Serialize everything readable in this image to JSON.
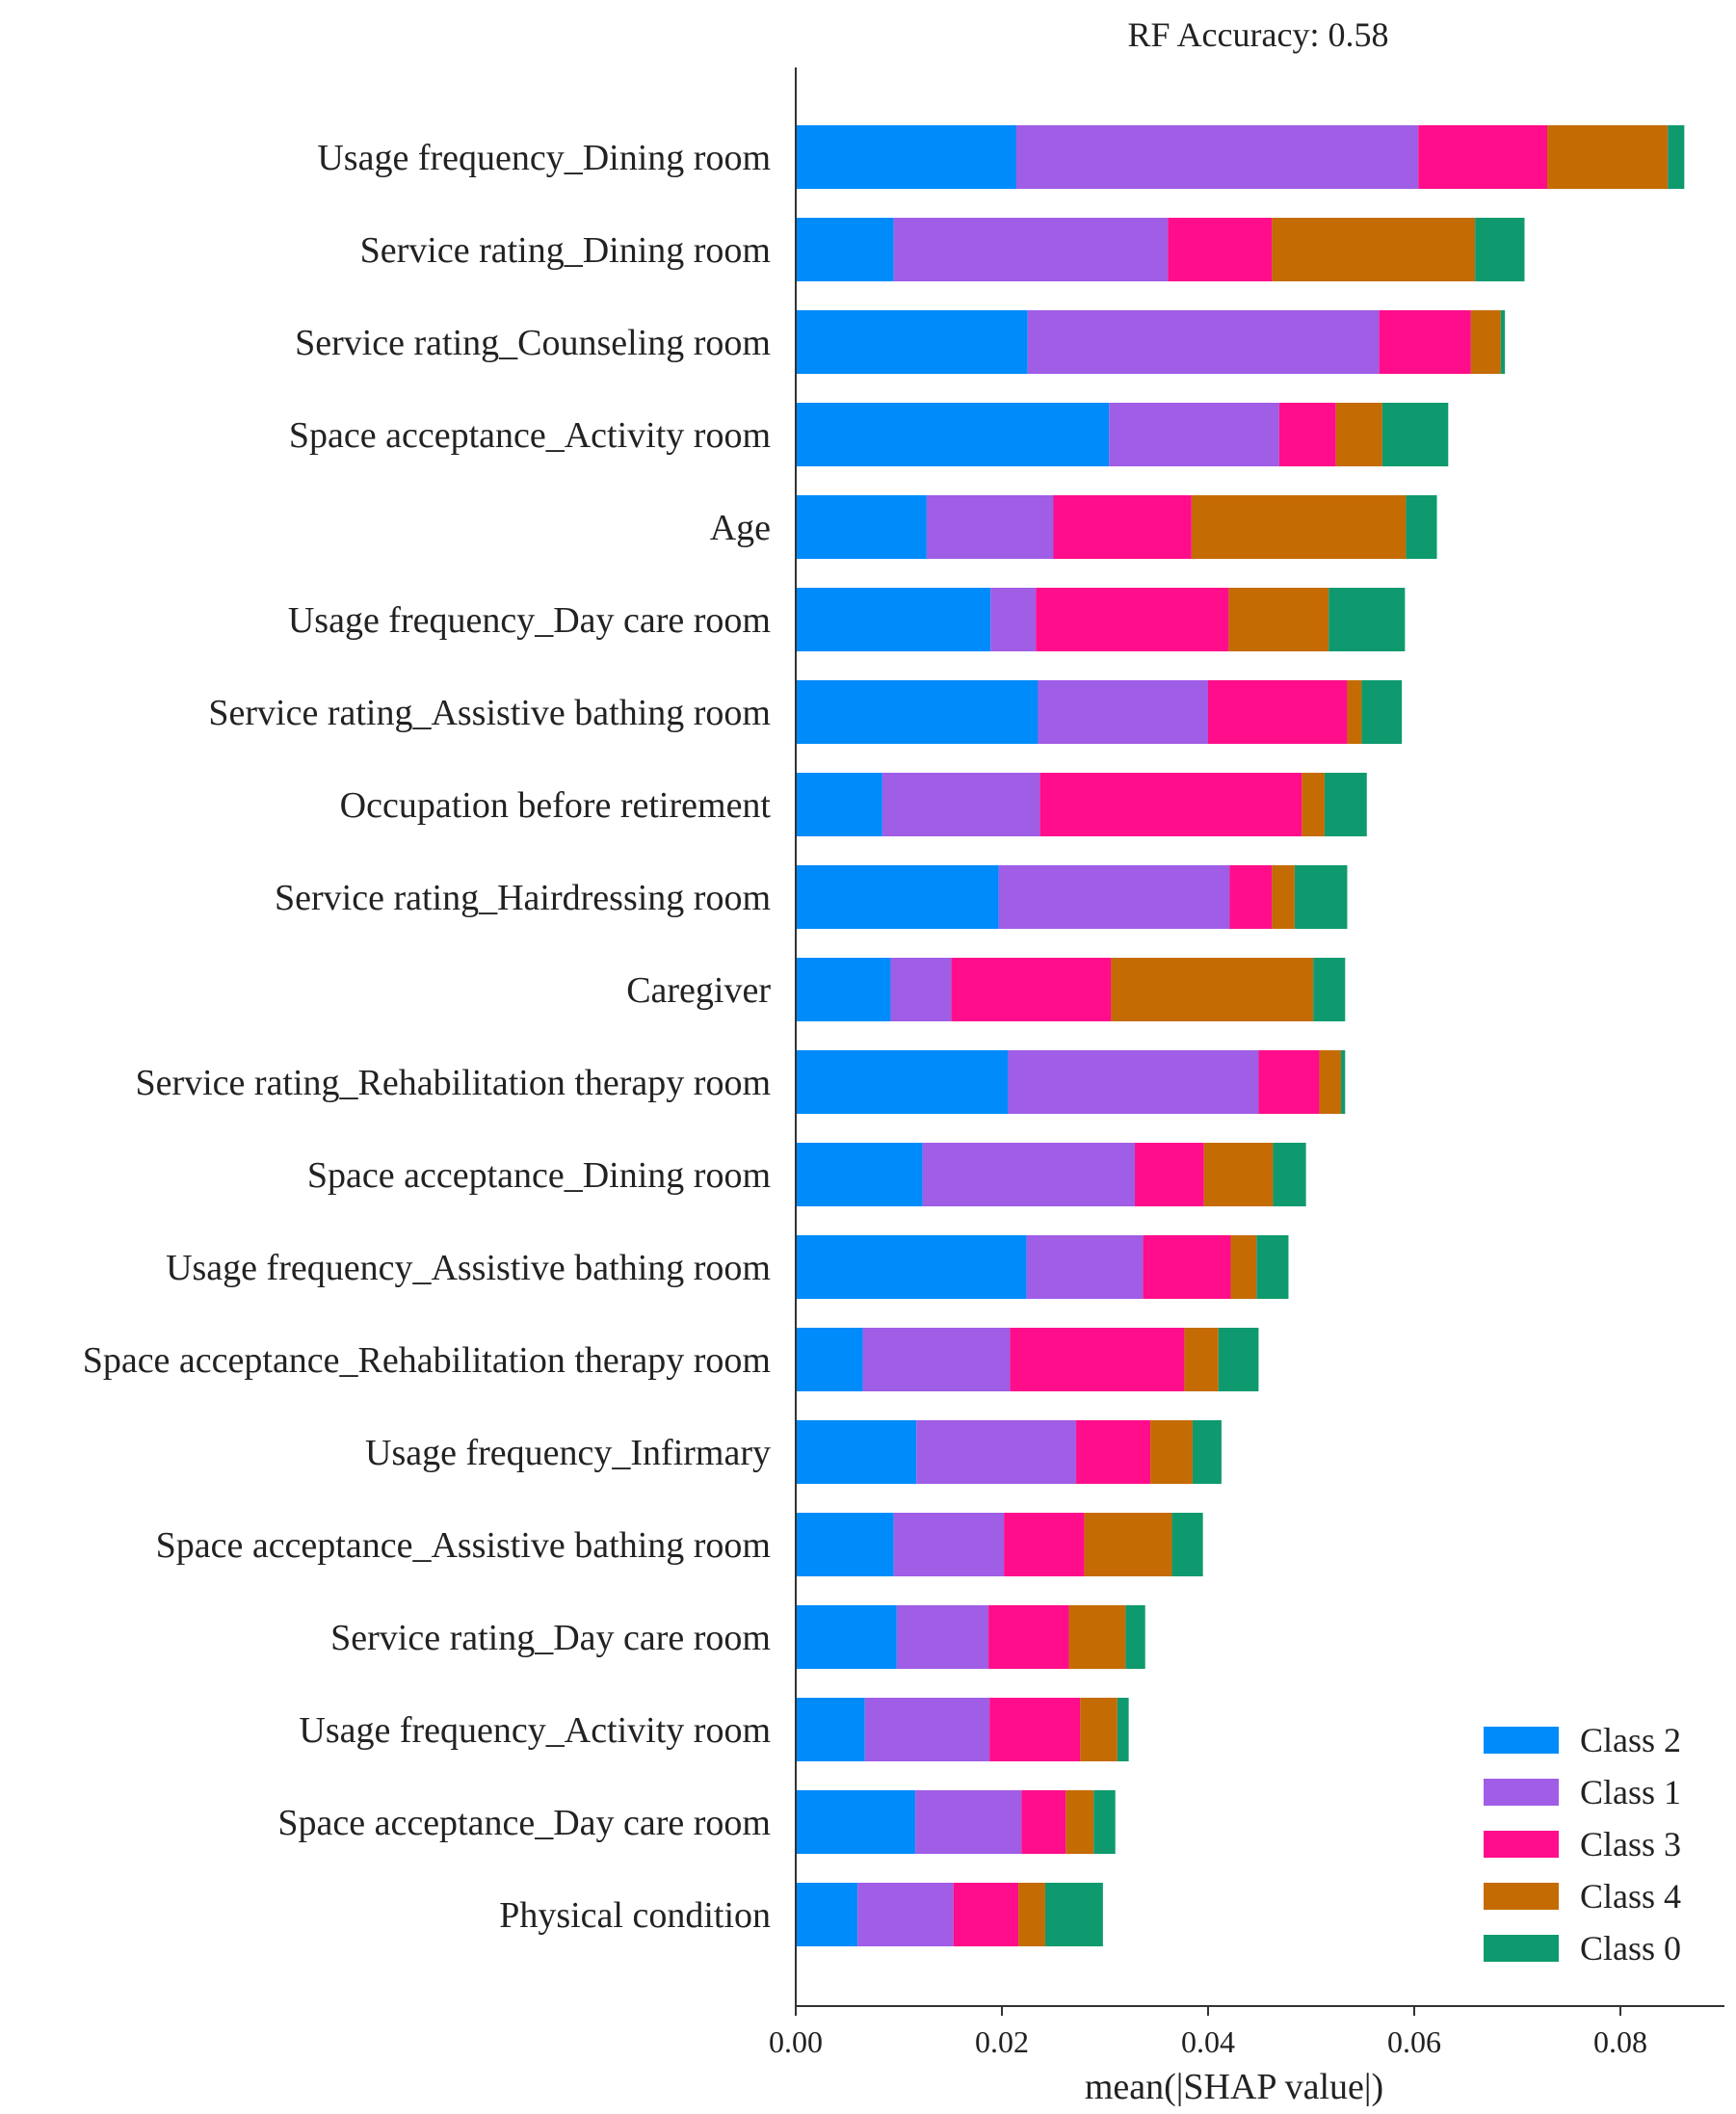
{
  "chart_data": {
    "type": "bar",
    "stacked": true,
    "orientation": "horizontal",
    "title": "RF Accuracy: 0.58",
    "xlabel": "mean(|SHAP value|)",
    "ylabel": "",
    "xlim": [
      0,
      0.09
    ],
    "xticks": [
      "0.00",
      "0.02",
      "0.04",
      "0.06",
      "0.08"
    ],
    "xtick_values": [
      0,
      0.02,
      0.04,
      0.06,
      0.08
    ],
    "legend_position": "bottom-right",
    "categories": [
      "Usage frequency_Dining room",
      "Service rating_Dining room",
      "Service rating_Counseling room",
      "Space acceptance_Activity room",
      "Age",
      "Usage frequency_Day care room",
      "Service rating_Assistive bathing room",
      "Occupation before retirement",
      "Service rating_Hairdressing room",
      "Caregiver",
      "Service rating_Rehabilitation therapy room",
      "Space acceptance_Dining room",
      "Usage frequency_Assistive bathing room",
      "Space acceptance_Rehabilitation therapy room",
      "Usage frequency_Infirmary",
      "Space acceptance_Assistive bathing room",
      "Service rating_Day care room",
      "Usage frequency_Activity room",
      "Space acceptance_Day care room",
      "Physical  condition"
    ],
    "series": [
      {
        "name": "Class 2",
        "color": "#008bfb",
        "values": [
          0.0214,
          0.0095,
          0.0225,
          0.0304,
          0.0127,
          0.0189,
          0.0235,
          0.0084,
          0.0197,
          0.0092,
          0.0206,
          0.0123,
          0.0224,
          0.0065,
          0.0117,
          0.0095,
          0.0098,
          0.0067,
          0.0116,
          0.006
        ]
      },
      {
        "name": "Class 1",
        "color": "#a05de6",
        "values": [
          0.039,
          0.0266,
          0.0341,
          0.0165,
          0.0123,
          0.0044,
          0.0165,
          0.0153,
          0.0224,
          0.0059,
          0.0243,
          0.0206,
          0.0113,
          0.0143,
          0.0155,
          0.0107,
          0.0089,
          0.0121,
          0.0103,
          0.0093
        ]
      },
      {
        "name": "Class 3",
        "color": "#ff0d8a",
        "values": [
          0.0125,
          0.0101,
          0.0089,
          0.0055,
          0.0134,
          0.0187,
          0.0135,
          0.0254,
          0.0041,
          0.0155,
          0.0059,
          0.0067,
          0.0085,
          0.0169,
          0.0072,
          0.0078,
          0.0078,
          0.0088,
          0.0043,
          0.0063
        ]
      },
      {
        "name": "Class 4",
        "color": "#c56b03",
        "values": [
          0.0117,
          0.0197,
          0.0029,
          0.0045,
          0.0208,
          0.0097,
          0.0014,
          0.0022,
          0.0022,
          0.0196,
          0.0021,
          0.0067,
          0.0025,
          0.0033,
          0.0041,
          0.0085,
          0.0055,
          0.0036,
          0.0027,
          0.0026
        ]
      },
      {
        "name": "Class 0",
        "color": "#0e9a6e",
        "values": [
          0.0016,
          0.0048,
          0.0004,
          0.0064,
          0.003,
          0.0074,
          0.0039,
          0.0041,
          0.0051,
          0.0031,
          0.0004,
          0.0032,
          0.0031,
          0.0039,
          0.0028,
          0.003,
          0.0019,
          0.0011,
          0.0021,
          0.0056
        ]
      }
    ],
    "legend": [
      "Class 2",
      "Class 1",
      "Class 3",
      "Class 4",
      "Class 0"
    ]
  }
}
